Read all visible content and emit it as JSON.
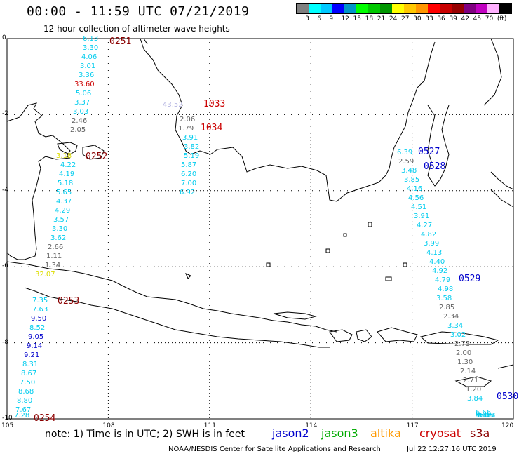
{
  "header": {
    "title": "00:00 - 11:59 UTC 07/21/2019",
    "subtitle": "12 hour collection of altimeter wave heights"
  },
  "colorbar": {
    "colors": [
      "#808080",
      "#00ffff",
      "#00c8ff",
      "#0000ff",
      "#0096c8",
      "#00ff00",
      "#00c800",
      "#009600",
      "#ffff00",
      "#ffc800",
      "#ff9600",
      "#ff0000",
      "#c80000",
      "#960000",
      "#800080",
      "#c000c0",
      "#ffb0ff",
      "#000000"
    ],
    "labels": [
      "3",
      "6",
      "9",
      "12",
      "15",
      "18",
      "21",
      "24",
      "27",
      "30",
      "33",
      "36",
      "39",
      "42",
      "45",
      "70",
      "(ft)"
    ]
  },
  "axes": {
    "lat_ticks": [
      "0",
      "-2",
      "-4",
      "-6",
      "-8",
      "-10"
    ],
    "lon_ticks": [
      "105",
      "108",
      "111",
      "114",
      "117",
      "120"
    ]
  },
  "passes": [
    {
      "id": "0251",
      "color": "#8b0000"
    },
    {
      "id": "0252",
      "color": "#8b0000"
    },
    {
      "id": "0253",
      "color": "#8b0000"
    },
    {
      "id": "0254",
      "color": "#8b0000"
    },
    {
      "id": "1033",
      "color": "#cc0000"
    },
    {
      "id": "1034",
      "color": "#cc0000"
    },
    {
      "id": "0527",
      "color": "#0000cc"
    },
    {
      "id": "0528",
      "color": "#0000cc"
    },
    {
      "id": "0529",
      "color": "#0000cc"
    },
    {
      "id": "0530",
      "color": "#0000cc"
    }
  ],
  "wave_tracks": [
    {
      "name": "track-west",
      "points": [
        {
          "v": "6.13",
          "c": "#00ccee"
        },
        {
          "v": "3.30",
          "c": "#00ccee"
        },
        {
          "v": "4.06",
          "c": "#00ccee"
        },
        {
          "v": "3.01",
          "c": "#00ccee"
        },
        {
          "v": "3.36",
          "c": "#00ccee"
        },
        {
          "v": "33.60",
          "c": "#cc0000"
        },
        {
          "v": "5.06",
          "c": "#00ccee"
        },
        {
          "v": "3.37",
          "c": "#00ccee"
        },
        {
          "v": "3.03",
          "c": "#00ccee"
        },
        {
          "v": "2.46",
          "c": "#606060"
        },
        {
          "v": "2.05",
          "c": "#606060"
        },
        {
          "v": "3.18",
          "c": "#dddd00"
        },
        {
          "v": "4.22",
          "c": "#00ccee"
        },
        {
          "v": "4.19",
          "c": "#00ccee"
        },
        {
          "v": "5.18",
          "c": "#00ccee"
        },
        {
          "v": "5.65",
          "c": "#00ccee"
        },
        {
          "v": "4.37",
          "c": "#00ccee"
        },
        {
          "v": "4.29",
          "c": "#00ccee"
        },
        {
          "v": "3.57",
          "c": "#00ccee"
        },
        {
          "v": "3.30",
          "c": "#00ccee"
        },
        {
          "v": "3.62",
          "c": "#00ccee"
        },
        {
          "v": "2.66",
          "c": "#606060"
        },
        {
          "v": "1.11",
          "c": "#606060"
        },
        {
          "v": "1.34",
          "c": "#606060"
        },
        {
          "v": "32.07",
          "c": "#dddd00"
        },
        {
          "v": "7.35",
          "c": "#00ccee"
        },
        {
          "v": "7.63",
          "c": "#00ccee"
        },
        {
          "v": "9.50",
          "c": "#0000cc"
        },
        {
          "v": "8.52",
          "c": "#00ccee"
        },
        {
          "v": "9.05",
          "c": "#0000cc"
        },
        {
          "v": "9.14",
          "c": "#0000cc"
        },
        {
          "v": "9.21",
          "c": "#0000cc"
        },
        {
          "v": "8.31",
          "c": "#00ccee"
        },
        {
          "v": "8.67",
          "c": "#00ccee"
        },
        {
          "v": "7.50",
          "c": "#00ccee"
        },
        {
          "v": "8.68",
          "c": "#00ccee"
        },
        {
          "v": "8.80",
          "c": "#00ccee"
        },
        {
          "v": "7.67",
          "c": "#00ccee"
        },
        {
          "v": "7.28",
          "c": "#00ccee"
        }
      ]
    },
    {
      "name": "track-middle",
      "points": [
        {
          "v": "43.52",
          "c": "#b0b0e0"
        },
        {
          "v": "2.06",
          "c": "#606060"
        },
        {
          "v": "1.79",
          "c": "#606060"
        },
        {
          "v": "3.91",
          "c": "#00ccee"
        },
        {
          "v": "3.82",
          "c": "#00ccee"
        },
        {
          "v": "5.19",
          "c": "#00ccee"
        },
        {
          "v": "5.87",
          "c": "#00ccee"
        },
        {
          "v": "6.20",
          "c": "#00ccee"
        },
        {
          "v": "7.00",
          "c": "#00ccee"
        },
        {
          "v": "6.92",
          "c": "#00ccee"
        }
      ]
    },
    {
      "name": "track-east",
      "points": [
        {
          "v": "6.39",
          "c": "#00ccee"
        },
        {
          "v": "2.59",
          "c": "#606060"
        },
        {
          "v": "3.48",
          "c": "#00ccee"
        },
        {
          "v": "3.85",
          "c": "#00ccee"
        },
        {
          "v": "4.16",
          "c": "#00ccee"
        },
        {
          "v": "4.56",
          "c": "#00ccee"
        },
        {
          "v": "4.51",
          "c": "#00ccee"
        },
        {
          "v": "3.91",
          "c": "#00ccee"
        },
        {
          "v": "4.27",
          "c": "#00ccee"
        },
        {
          "v": "4.82",
          "c": "#00ccee"
        },
        {
          "v": "3.99",
          "c": "#00ccee"
        },
        {
          "v": "4.13",
          "c": "#00ccee"
        },
        {
          "v": "4.40",
          "c": "#00ccee"
        },
        {
          "v": "4.92",
          "c": "#00ccee"
        },
        {
          "v": "4.79",
          "c": "#00ccee"
        },
        {
          "v": "4.98",
          "c": "#00ccee"
        },
        {
          "v": "3.58",
          "c": "#00ccee"
        },
        {
          "v": "2.85",
          "c": "#606060"
        },
        {
          "v": "2.34",
          "c": "#606060"
        },
        {
          "v": "3.34",
          "c": "#00ccee"
        },
        {
          "v": "3.02",
          "c": "#00ccee"
        },
        {
          "v": "2.73",
          "c": "#606060"
        },
        {
          "v": "2.00",
          "c": "#606060"
        },
        {
          "v": "1.30",
          "c": "#606060"
        },
        {
          "v": "2.14",
          "c": "#606060"
        },
        {
          "v": "2.71",
          "c": "#606060"
        },
        {
          "v": "1.20",
          "c": "#606060"
        },
        {
          "v": "3.84",
          "c": "#00ccee"
        },
        {
          "v": "6.66",
          "c": "#00ccee"
        },
        {
          "v": "5.30",
          "c": "#00ccee"
        },
        {
          "v": "4.19",
          "c": "#00ccee"
        },
        {
          "v": "5.65",
          "c": "#00ccee"
        },
        {
          "v": "6.31",
          "c": "#00ccee"
        },
        {
          "v": "5.18",
          "c": "#00ccee"
        }
      ]
    }
  ],
  "note": "note: 1) Time is in UTC; 2) SWH is in feet",
  "legend": [
    {
      "name": "jason2",
      "color": "#0000cc"
    },
    {
      "name": "jason3",
      "color": "#00aa00"
    },
    {
      "name": "altika",
      "color": "#ff9900"
    },
    {
      "name": "cryosat",
      "color": "#cc0000"
    },
    {
      "name": "s3a",
      "color": "#8b0000"
    }
  ],
  "footer": {
    "credit": "NOAA/NESDIS Center for Satellite Applications and Research",
    "date": "Jul 22 12:27:16 UTC 2019"
  }
}
